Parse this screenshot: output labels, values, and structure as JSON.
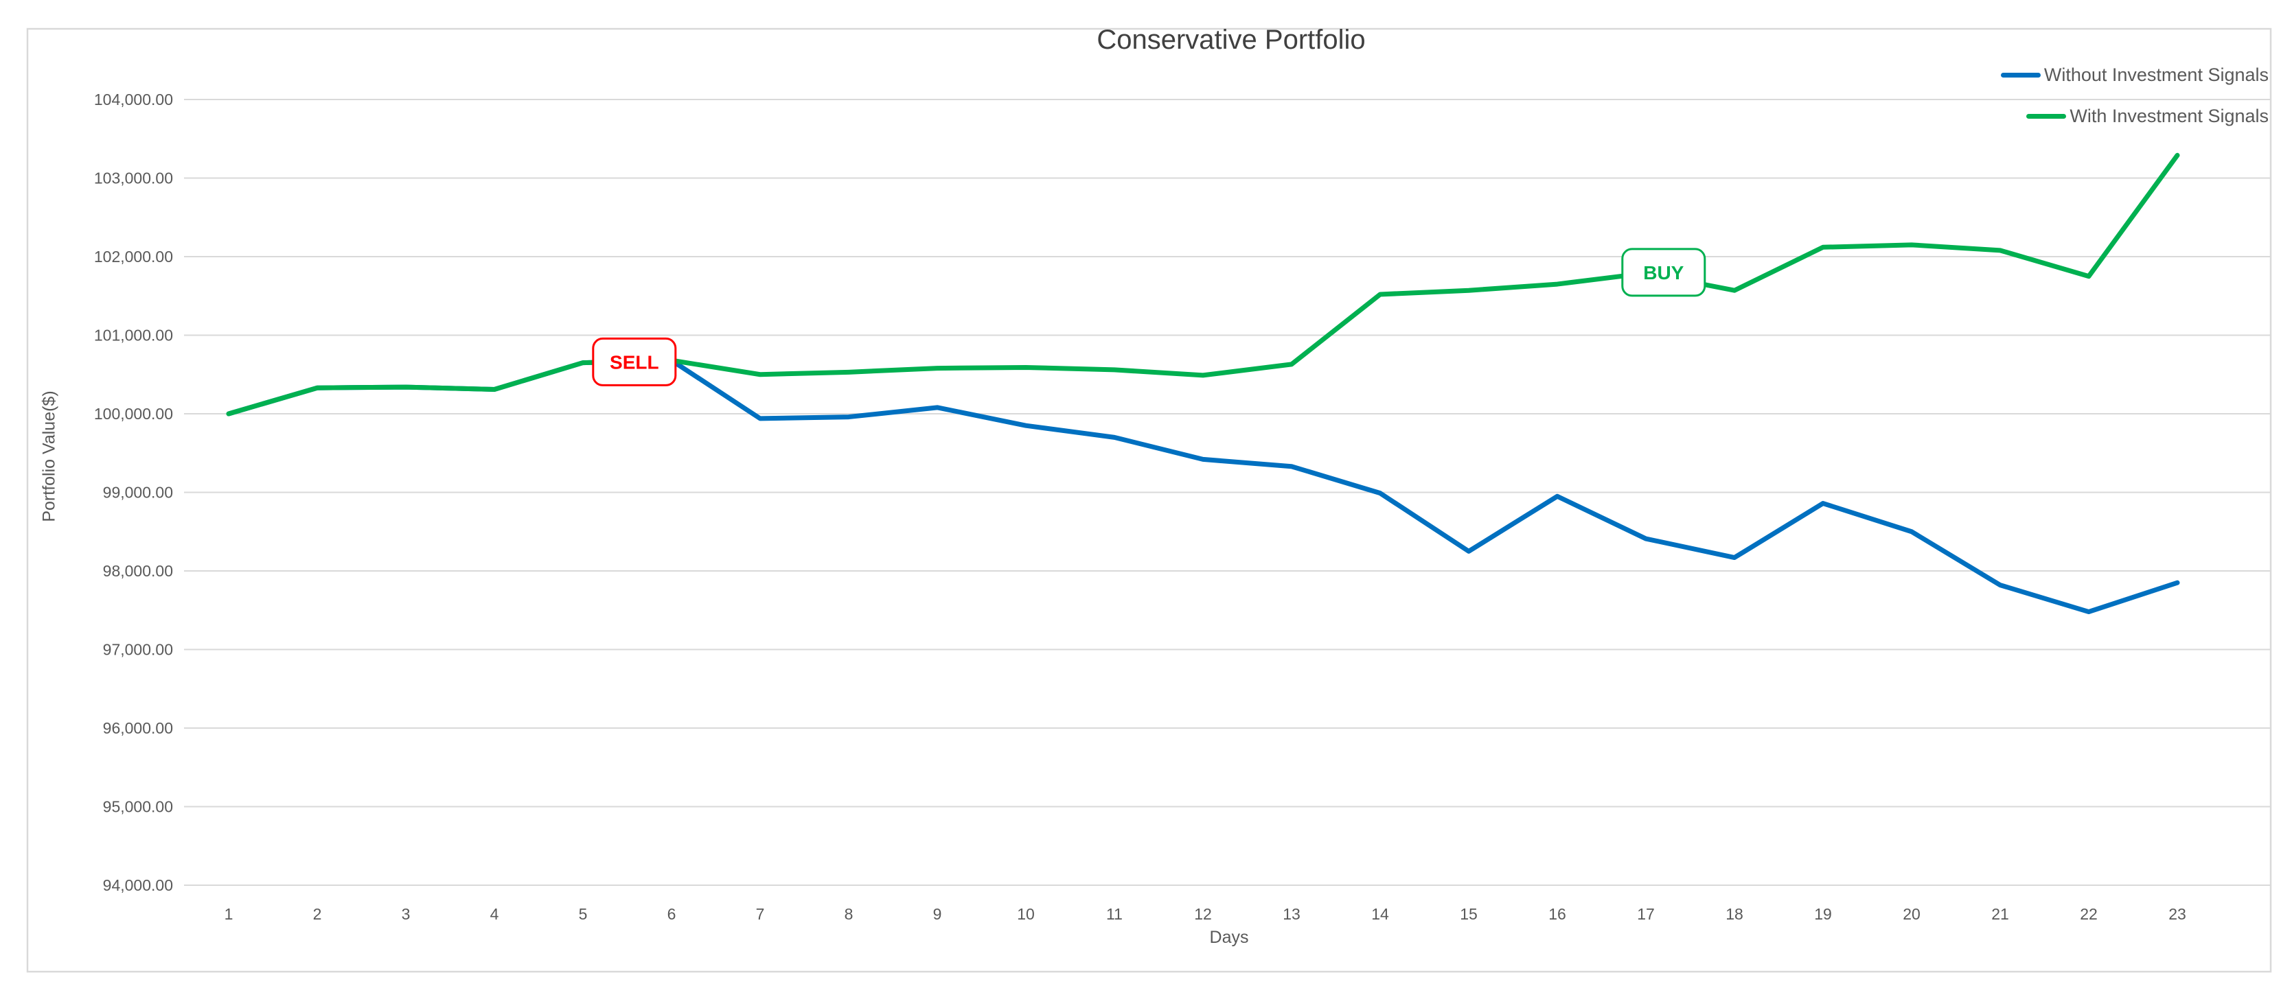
{
  "chart": {
    "frame_color": "#D9D9D9",
    "grid_color": "#D9D9D9",
    "tick_text_color": "#595959",
    "title_color": "#404040",
    "background": "#FFFFFF"
  },
  "chart_data": {
    "type": "line",
    "title": "Conservative Portfolio",
    "xlabel": "Days",
    "ylabel": "Portfolio Value($)",
    "x": [
      1,
      2,
      3,
      4,
      5,
      6,
      7,
      8,
      9,
      10,
      11,
      12,
      13,
      14,
      15,
      16,
      17,
      18,
      19,
      20,
      21,
      22,
      23
    ],
    "x_tick_labels": [
      "1",
      "2",
      "3",
      "4",
      "5",
      "6",
      "7",
      "8",
      "9",
      "10",
      "11",
      "12",
      "13",
      "14",
      "15",
      "16",
      "17",
      "18",
      "19",
      "20",
      "21",
      "22",
      "23"
    ],
    "series": [
      {
        "name": "Without Investment Signals",
        "color": "#0070C0",
        "values": [
          100000,
          100330,
          100340,
          100310,
          100650,
          100680,
          99940,
          99960,
          100080,
          99850,
          99700,
          99420,
          99330,
          98990,
          98250,
          98950,
          98410,
          98170,
          98860,
          98500,
          97820,
          97480,
          97850
        ]
      },
      {
        "name": "With Investment Signals",
        "color": "#00B050",
        "values": [
          100000,
          100330,
          100340,
          100310,
          100650,
          100680,
          100500,
          100530,
          100580,
          100590,
          100560,
          100490,
          100630,
          101520,
          101570,
          101650,
          101790,
          101570,
          102120,
          102150,
          102080,
          101750,
          103290
        ]
      }
    ],
    "annotations": [
      {
        "label": "SELL",
        "color": "#FF0000",
        "day": 5.58,
        "value": 100660
      },
      {
        "label": "BUY",
        "color": "#00B050",
        "day": 17.2,
        "value": 101800
      }
    ],
    "ylim": [
      94000,
      104000
    ],
    "y_tick_step": 1000,
    "y_tick_labels": [
      "94,000.00",
      "95,000.00",
      "96,000.00",
      "97,000.00",
      "98,000.00",
      "99,000.00",
      "100,000.00",
      "101,000.00",
      "102,000.00",
      "103,000.00",
      "104,000.00"
    ],
    "grid": true,
    "legend_position": "top-right"
  }
}
